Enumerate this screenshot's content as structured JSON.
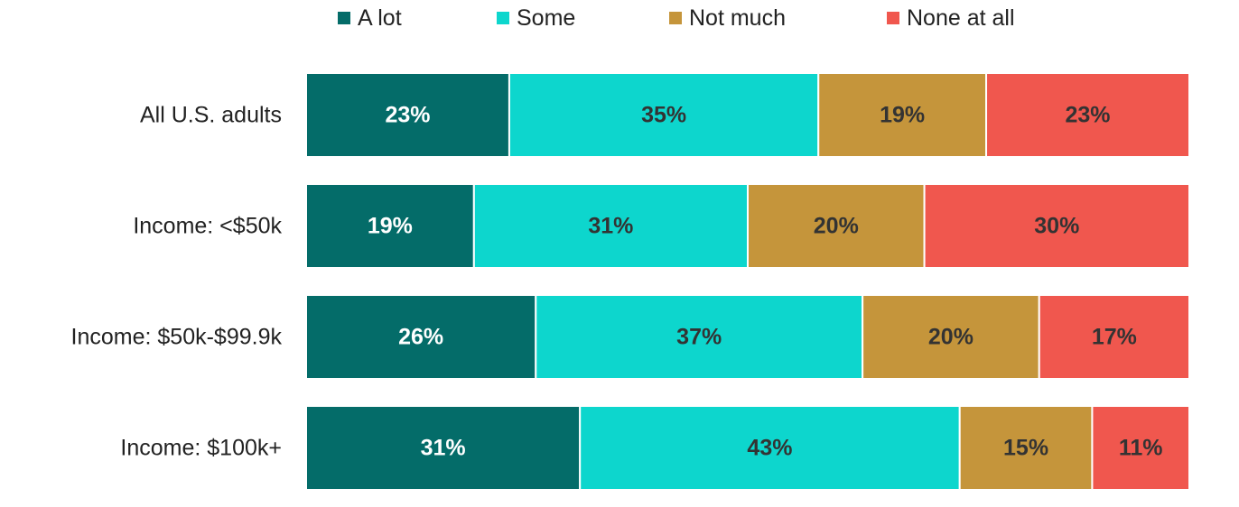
{
  "chart_data": {
    "type": "bar",
    "orientation": "horizontal",
    "stacked": true,
    "xlim": [
      0,
      100
    ],
    "grid": false,
    "legend_position": "top",
    "categories": [
      "All U.S. adults",
      "Income: <$50k",
      "Income: $50k-$99.9k",
      "Income: $100k+"
    ],
    "series": [
      {
        "name": "A lot",
        "color": "#046C69",
        "label_color": "#FFFFFF",
        "values": [
          23,
          19,
          26,
          31
        ]
      },
      {
        "name": "Some",
        "color": "#0DD6CD",
        "label_color": "#333333",
        "values": [
          35,
          31,
          37,
          43
        ]
      },
      {
        "name": "Not much",
        "color": "#C5953B",
        "label_color": "#333333",
        "values": [
          19,
          20,
          20,
          15
        ]
      },
      {
        "name": "None at all",
        "color": "#F0574E",
        "label_color": "#333333",
        "values": [
          23,
          30,
          17,
          11
        ]
      }
    ],
    "value_suffix": "%"
  }
}
